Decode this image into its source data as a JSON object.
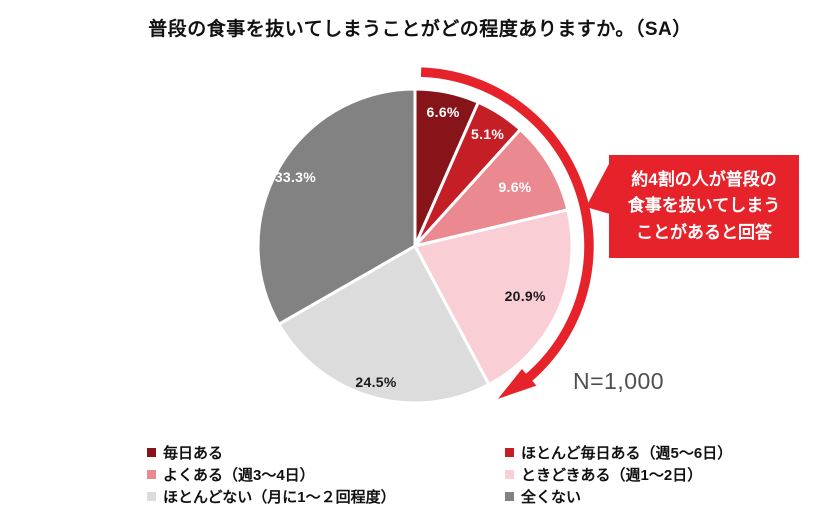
{
  "title": "普段の食事を抜いてしまうことがどの程度ありますか。（SA）",
  "n_label": "N=1,000",
  "accent_color": "#e6232b",
  "callout": {
    "bg": "#e6232b",
    "text_color": "#ffffff",
    "lines": [
      "約4割の人が普段の",
      "食事を抜いてしまう",
      "ことがあると回答"
    ]
  },
  "chart_data": {
    "type": "pie",
    "title": "普段の食事を抜いてしまうことがどの程度ありますか。（SA）",
    "unit": "%",
    "start_angle_deg": 0,
    "direction": "clockwise",
    "series": [
      {
        "name": "毎日ある",
        "value": 6.6,
        "color": "#871418",
        "label": "6.6%",
        "label_color": "#ffffff"
      },
      {
        "name": "ほとんど毎日ある（週5〜6日）",
        "value": 5.1,
        "color": "#c41e26",
        "label": "5.1%",
        "label_color": "#ffffff"
      },
      {
        "name": "よくある（週3〜4日）",
        "value": 9.6,
        "color": "#ea8a90",
        "label": "9.6%",
        "label_color": "#ffffff"
      },
      {
        "name": "ときどきある（週1〜2日）",
        "value": 20.9,
        "color": "#f9cfd5",
        "label": "20.9%",
        "label_color": "#1a1a1a"
      },
      {
        "name": "ほとんどない（月に1〜２回程度）",
        "value": 24.5,
        "color": "#dcdcdc",
        "label": "24.5%",
        "label_color": "#1a1a1a"
      },
      {
        "name": "全くない",
        "value": 33.3,
        "color": "#828282",
        "label": "33.3%",
        "label_color": "#ffffff"
      }
    ],
    "highlight_arc": {
      "color": "#e6232b",
      "from_category": "毎日ある",
      "to_category": "ときどきある（週1〜2日）",
      "sum_percent": 42.2,
      "annotation": "約4割の人が普段の食事を抜いてしまうことがあると回答"
    },
    "legend_position": "bottom",
    "legend_columns": [
      [
        0,
        2,
        4
      ],
      [
        1,
        3,
        5
      ]
    ]
  }
}
